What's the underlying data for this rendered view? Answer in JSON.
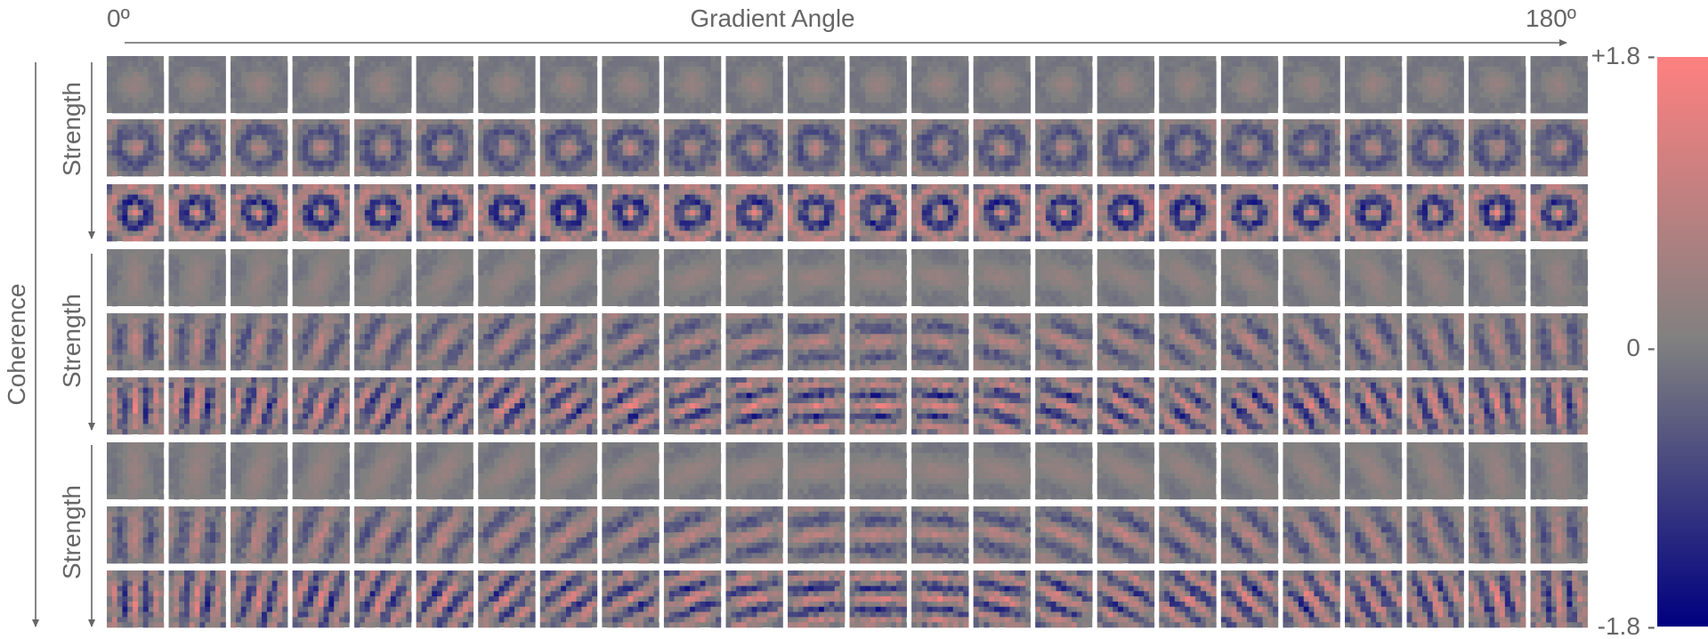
{
  "figure": {
    "x_axis": {
      "title": "Gradient Angle",
      "start_label": "0º",
      "end_label": "180º",
      "angle_range_deg": [
        0,
        180
      ],
      "columns": 24
    },
    "y_axis": {
      "outer_label": "Coherence",
      "group_label": "Strength",
      "groups": 3,
      "rows_per_group": 3
    },
    "colorbar": {
      "top_label": "+1.8 -",
      "middle_label": "0 -",
      "bottom_label": "-1.8 -",
      "vmin": -1.8,
      "vmid": 0,
      "vmax": 1.8,
      "color_top": "#ff8080",
      "color_mid": "#808080",
      "color_bottom": "#000080"
    },
    "filter_grid": {
      "rows": 9,
      "cols": 24,
      "pixels_per_filter": 11,
      "background_value_color": "#808080"
    }
  }
}
